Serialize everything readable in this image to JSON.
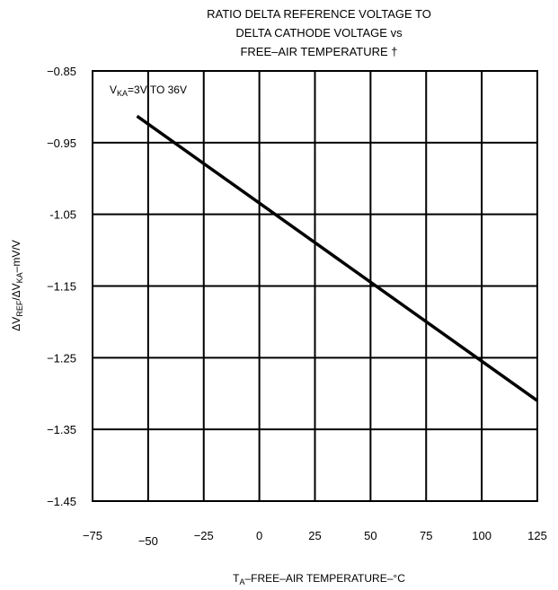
{
  "chart_data": {
    "type": "line",
    "title_lines": [
      "RATIO DELTA REFERENCE VOLTAGE TO",
      "DELTA CATHODE VOLTAGE vs",
      "FREE–AIR TEMPERATURE †"
    ],
    "xlabel": {
      "prefix": "T",
      "sub": "A",
      "rest": "–FREE–AIR TEMPERATURE–°C"
    },
    "ylabel": {
      "parts": [
        "ΔV",
        "REF",
        "/ΔV",
        "KA",
        "–mV/V"
      ]
    },
    "annotation": {
      "prefix": "V",
      "sub": "KA",
      "rest": "=3V TO 36V"
    },
    "x_ticks": [
      "−75",
      "−50",
      "−25",
      "0",
      "25",
      "50",
      "75",
      "100",
      "125"
    ],
    "x_tick_values": [
      -75,
      -50,
      -25,
      0,
      25,
      50,
      75,
      100,
      125
    ],
    "y_ticks": [
      "−0.85",
      "−0.95",
      "-1.05",
      "−1.15",
      "−1.25",
      "−1.35",
      "−1.45"
    ],
    "y_tick_values": [
      -0.85,
      -0.95,
      -1.05,
      -1.15,
      -1.25,
      -1.35,
      -1.45
    ],
    "xlim": [
      -75,
      125
    ],
    "ylim": [
      -1.45,
      -0.85
    ],
    "grid": true,
    "series": [
      {
        "x": [
          -55,
          125
        ],
        "y": [
          -0.913,
          -1.31
        ]
      }
    ],
    "line_color": "#000000"
  }
}
